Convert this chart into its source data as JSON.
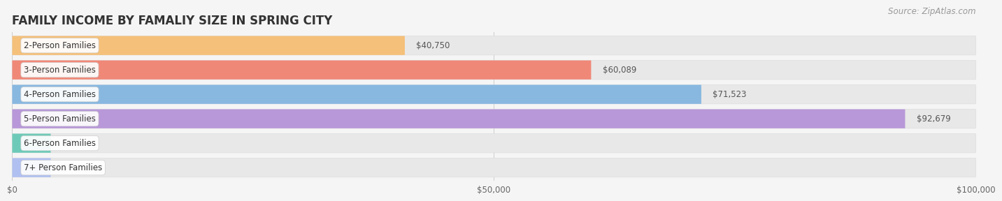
{
  "title": "FAMILY INCOME BY FAMALIY SIZE IN SPRING CITY",
  "source": "Source: ZipAtlas.com",
  "categories": [
    "2-Person Families",
    "3-Person Families",
    "4-Person Families",
    "5-Person Families",
    "6-Person Families",
    "7+ Person Families"
  ],
  "values": [
    40750,
    60089,
    71523,
    92679,
    0,
    0
  ],
  "bar_colors": [
    "#f5c07a",
    "#f08878",
    "#88b8e0",
    "#b898d8",
    "#6ecab8",
    "#b0c0f0"
  ],
  "xlim": [
    0,
    100000
  ],
  "xticks": [
    0,
    50000,
    100000
  ],
  "xtick_labels": [
    "$0",
    "$50,000",
    "$100,000"
  ],
  "background_color": "#f5f5f5",
  "bar_background_color": "#e8e8e8",
  "title_fontsize": 12,
  "label_fontsize": 8.5,
  "value_fontsize": 8.5,
  "source_fontsize": 8.5
}
